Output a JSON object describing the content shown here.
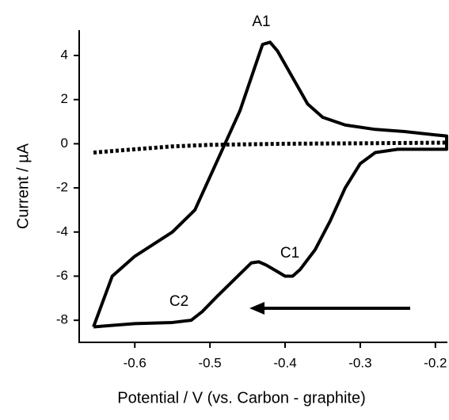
{
  "chart_data": {
    "type": "line",
    "xlabel": "Potential / V (vs. Carbon - graphite)",
    "ylabel": "Current / µA",
    "xlim": [
      -0.674,
      -0.184
    ],
    "xticks": [
      -0.6,
      -0.5,
      -0.4,
      -0.3,
      -0.2
    ],
    "ylim": [
      -9,
      5.15
    ],
    "yticks": [
      -8,
      -6,
      -4,
      -2,
      0,
      2,
      4
    ],
    "annotations": [
      "A1",
      "C1",
      "C2"
    ],
    "series": [
      {
        "color": "#000000",
        "dashed": false,
        "x": [
          -0.655,
          -0.63,
          -0.6,
          -0.55,
          -0.52,
          -0.5,
          -0.48,
          -0.46,
          -0.44,
          -0.43,
          -0.42,
          -0.41,
          -0.39,
          -0.37,
          -0.35,
          -0.32,
          -0.28,
          -0.24,
          -0.2,
          -0.185,
          -0.185,
          -0.25,
          -0.28,
          -0.3,
          -0.32,
          -0.34,
          -0.36,
          -0.38,
          -0.39,
          -0.4,
          -0.41,
          -0.425,
          -0.435,
          -0.445,
          -0.46,
          -0.49,
          -0.51,
          -0.525,
          -0.55,
          -0.6,
          -0.655
        ],
        "values": [
          -8.3,
          -6,
          -5.1,
          -4,
          -3,
          -1.5,
          0,
          1.5,
          3.5,
          4.5,
          4.6,
          4.2,
          3,
          1.8,
          1.2,
          0.85,
          0.65,
          0.55,
          0.4,
          0.35,
          -0.25,
          -0.25,
          -0.4,
          -0.9,
          -2,
          -3.5,
          -4.8,
          -5.7,
          -6,
          -6,
          -5.8,
          -5.5,
          -5.35,
          -5.4,
          -5.9,
          -6.9,
          -7.6,
          -8,
          -8.1,
          -8.15,
          -8.3
        ]
      },
      {
        "color": "#000000",
        "dashed": true,
        "x": [
          -0.655,
          -0.6,
          -0.55,
          -0.5,
          -0.4,
          -0.3,
          -0.185
        ],
        "values": [
          -0.4,
          -0.25,
          -0.12,
          -0.05,
          0,
          0.02,
          0.05
        ]
      }
    ]
  }
}
